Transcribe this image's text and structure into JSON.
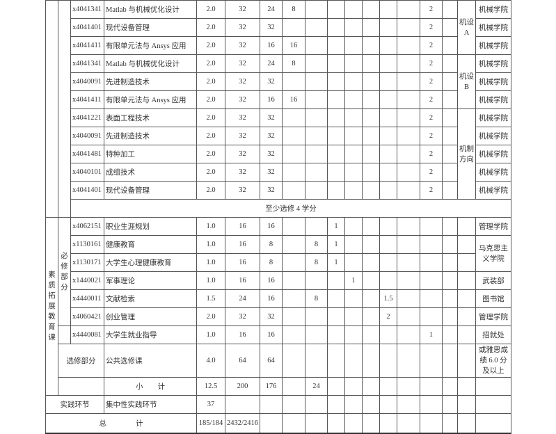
{
  "top_section": {
    "rows": [
      {
        "code": "x4041341",
        "name": "Matlab 与机械优化设计",
        "credit": "2.0",
        "hours": "32",
        "lecture": "24",
        "lab": "8",
        "t6": "2",
        "dept": "机械学院"
      },
      {
        "code": "x4041401",
        "name": "现代设备管理",
        "credit": "2.0",
        "hours": "32",
        "lecture": "32",
        "lab": "",
        "t6": "2",
        "dept": "机械学院"
      },
      {
        "code": "x4041411",
        "name": "有限单元法与 Ansys 应用",
        "credit": "2.0",
        "hours": "32",
        "lecture": "16",
        "lab": "16",
        "t6": "2",
        "dept": "机械学院"
      },
      {
        "code": "x4041341",
        "name": "Matlab 与机械优化设计",
        "credit": "2.0",
        "hours": "32",
        "lecture": "24",
        "lab": "8",
        "t6": "2",
        "dept": "机械学院"
      },
      {
        "code": "x4040091",
        "name": "先进制造技术",
        "credit": "2.0",
        "hours": "32",
        "lecture": "32",
        "lab": "",
        "t6": "2",
        "dept": "机械学院"
      },
      {
        "code": "x4041411",
        "name": "有限单元法与 Ansys 应用",
        "credit": "2.0",
        "hours": "32",
        "lecture": "16",
        "lab": "16",
        "t6": "2",
        "dept": "机械学院"
      },
      {
        "code": "x4041221",
        "name": "表面工程技术",
        "credit": "2.0",
        "hours": "32",
        "lecture": "32",
        "lab": "",
        "t6": "2",
        "dept": "机械学院"
      },
      {
        "code": "x4040091",
        "name": "先进制造技术",
        "credit": "2.0",
        "hours": "32",
        "lecture": "32",
        "lab": "",
        "t6": "2",
        "dept": "机械学院"
      },
      {
        "code": "x4041481",
        "name": "特种加工",
        "credit": "2.0",
        "hours": "32",
        "lecture": "32",
        "lab": "",
        "t6": "2",
        "dept": "机械学院"
      },
      {
        "code": "x4040101",
        "name": "成组技术",
        "credit": "2.0",
        "hours": "32",
        "lecture": "32",
        "lab": "",
        "t6": "2",
        "dept": "机械学院"
      },
      {
        "code": "x4041401",
        "name": "现代设备管理",
        "credit": "2.0",
        "hours": "32",
        "lecture": "32",
        "lab": "",
        "t6": "2",
        "dept": "机械学院"
      }
    ],
    "directions": [
      "机设A",
      "机设B",
      "机制方向"
    ],
    "note": "至少选修 4 学分"
  },
  "quality_section": {
    "category": "素质拓展教育课",
    "required_label": "必修部分",
    "rows": [
      {
        "code": "x4062151",
        "name": "职业生涯规划",
        "credit": "1.0",
        "hours": "16",
        "lecture": "16",
        "other": "",
        "t1": "1",
        "dept": "管理学院"
      },
      {
        "code": "x1130161",
        "name": "健康教育",
        "credit": "1.0",
        "hours": "16",
        "lecture": "8",
        "other": "8",
        "t1": "1",
        "dept": "马克思主义学院"
      },
      {
        "code": "x1130171",
        "name": "大学生心理健康教育",
        "credit": "1.0",
        "hours": "16",
        "lecture": "8",
        "other": "8",
        "t1": "1"
      },
      {
        "code": "x1440021",
        "name": "军事理论",
        "credit": "1.0",
        "hours": "16",
        "lecture": "16",
        "other": "",
        "t2": "1",
        "dept": "武装部"
      },
      {
        "code": "x4440011",
        "name": "文献检索",
        "credit": "1.5",
        "hours": "24",
        "lecture": "16",
        "other": "8",
        "t4": "1.5",
        "dept": "图书馆"
      },
      {
        "code": "x4060421",
        "name": "创业管理",
        "credit": "2.0",
        "hours": "32",
        "lecture": "32",
        "other": "",
        "t4": "2",
        "dept": "管理学院"
      },
      {
        "code": "x4440081",
        "name": "大学生就业指导",
        "credit": "1.0",
        "hours": "16",
        "lecture": "16",
        "other": "",
        "t6": "1",
        "dept": "招就处"
      }
    ],
    "elective": {
      "label": "选修部分",
      "name": "公共选修课",
      "credit": "4.0",
      "hours": "64",
      "lecture": "64",
      "dept": "或雅思成绩 6.0 分及以上"
    },
    "subtotal": {
      "label": "小　　计",
      "credit": "12.5",
      "hours": "200",
      "lecture": "176",
      "other": "24"
    }
  },
  "practice": {
    "label": "实践环节",
    "name": "集中性实践环节",
    "credit": "37"
  },
  "total": {
    "label": "总　　　　计",
    "credit": "185/184",
    "hours": "2432/2416"
  }
}
